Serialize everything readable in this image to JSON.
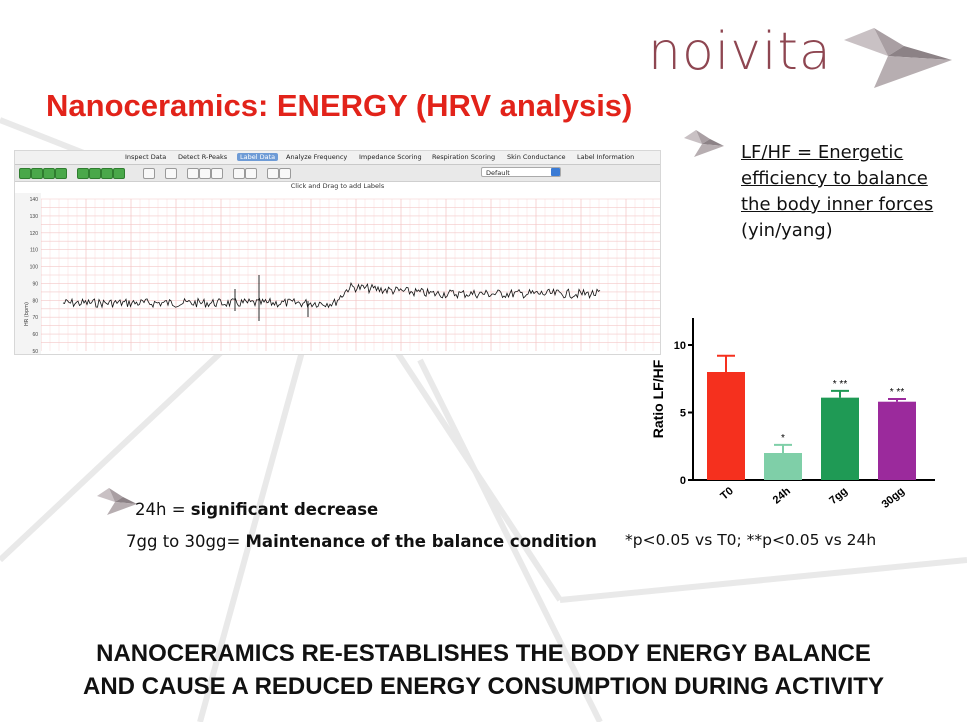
{
  "slide": {
    "logo_text": "noivita",
    "title": "Nanoceramics: ENERGY (HRV analysis)",
    "conclusion_line1": "NANOCERAMICS RE-ESTABLISHES THE BODY ENERGY BALANCE",
    "conclusion_line2": "AND CAUSE A REDUCED ENERGY CONSUMPTION DURING ACTIVITY"
  },
  "hrv_software": {
    "tabs": [
      "Inspect Data",
      "Detect R-Peaks",
      "Label Data",
      "Analyze Frequency",
      "Impedance Scoring",
      "Respiration Scoring",
      "Skin Conductance",
      "Label Information"
    ],
    "active_tab": "Label Data",
    "dropdown_value": "Default",
    "hint": "Click and Drag to add Labels",
    "y_axis_label": "HR (bpm)",
    "y_ticks": [
      "140",
      "130",
      "120",
      "110",
      "100",
      "90",
      "80",
      "70",
      "60",
      "50"
    ]
  },
  "notes": {
    "definition_lines": [
      "LF/HF = Energetic",
      "efficiency to balance",
      "the body inner forces"
    ],
    "definition_tail": "(yin/yang)",
    "bullet1_prefix": "24h = ",
    "bullet1_bold": "significant decrease",
    "bullet2_prefix": "7gg to 30gg= ",
    "bullet2_bold": "Maintenance of the balance condition",
    "significance": "*p<0.05 vs T0; **p<0.05 vs 24h"
  },
  "chart_data": {
    "type": "bar",
    "ylabel": "Ratio LF/HF",
    "ylim": [
      0,
      12
    ],
    "yticks": [
      "0",
      "5",
      "10"
    ],
    "categories": [
      "T0",
      "24h",
      "7gg",
      "30gg"
    ],
    "values": [
      8.0,
      2.0,
      6.1,
      5.8
    ],
    "errors": [
      1.2,
      0.6,
      0.5,
      0.2
    ],
    "annotations": [
      "",
      "*",
      "* **",
      "* **"
    ],
    "colors": [
      "#f5301e",
      "#7fcfa8",
      "#1f9a55",
      "#9b2a9c"
    ]
  },
  "colors": {
    "title": "#e2231a",
    "logo": "#8e4651"
  }
}
